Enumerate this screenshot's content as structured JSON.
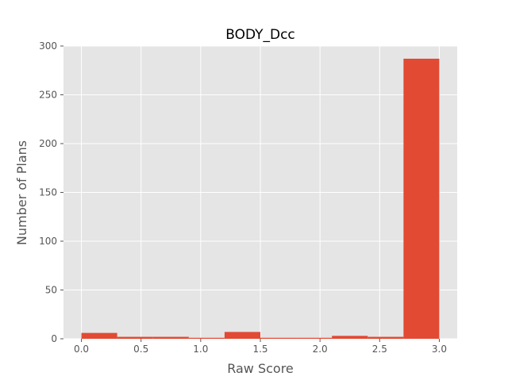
{
  "chart_data": {
    "type": "bar",
    "title": "BODY_Dcc",
    "xlabel": "Raw Score",
    "ylabel": "Number of Plans",
    "xlim": [
      -0.15,
      3.15
    ],
    "ylim": [
      0,
      300
    ],
    "xticks": [
      0.0,
      0.5,
      1.0,
      1.5,
      2.0,
      2.5,
      3.0
    ],
    "xtick_labels": [
      "0.0",
      "0.5",
      "1.0",
      "1.5",
      "2.0",
      "2.5",
      "3.0"
    ],
    "yticks": [
      0,
      50,
      100,
      150,
      200,
      250,
      300
    ],
    "ytick_labels": [
      "0",
      "50",
      "100",
      "150",
      "200",
      "250",
      "300"
    ],
    "grid": true,
    "bins": [
      {
        "x0": 0.0,
        "x1": 0.3,
        "count": 6
      },
      {
        "x0": 0.3,
        "x1": 0.6,
        "count": 2
      },
      {
        "x0": 0.6,
        "x1": 0.9,
        "count": 2
      },
      {
        "x0": 0.9,
        "x1": 1.2,
        "count": 1
      },
      {
        "x0": 1.2,
        "x1": 1.5,
        "count": 7
      },
      {
        "x0": 1.5,
        "x1": 1.8,
        "count": 1
      },
      {
        "x0": 1.8,
        "x1": 2.1,
        "count": 1
      },
      {
        "x0": 2.1,
        "x1": 2.4,
        "count": 3
      },
      {
        "x0": 2.4,
        "x1": 2.7,
        "count": 2
      },
      {
        "x0": 2.7,
        "x1": 3.0,
        "count": 287
      }
    ],
    "colors": {
      "bar": "#E24A33",
      "plot_bg": "#E5E5E5",
      "grid": "#FFFFFF",
      "text": "#555555",
      "title": "#000000"
    }
  }
}
